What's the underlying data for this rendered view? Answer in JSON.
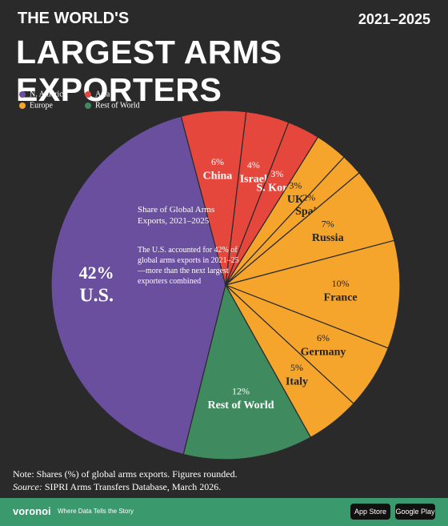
{
  "header": {
    "kicker": "THE WORLD'S",
    "years": "2021–2025",
    "title": "LARGEST ARMS EXPORTERS"
  },
  "chart_data": {
    "type": "pie",
    "series": [
      {
        "name": "N. America",
        "color": "#6a4f9f",
        "categories": [
          "U.S."
        ],
        "values": [
          42
        ],
        "value_labels": [
          "42%"
        ]
      },
      {
        "name": "Asia",
        "color": "#e5473d",
        "categories": [
          "China",
          "Israel",
          "S. Korea"
        ],
        "values": [
          6,
          4,
          3
        ],
        "value_labels": [
          "6%",
          "4%",
          "3%"
        ]
      },
      {
        "name": "Europe",
        "color": "#f5a52c",
        "categories": [
          "UK",
          "Spain",
          "Russia",
          "France",
          "Germany",
          "Italy"
        ],
        "values": [
          3,
          2,
          7,
          10,
          6,
          5
        ],
        "value_labels": [
          "3%",
          "2%",
          "7%",
          "10%",
          "6%",
          "5%"
        ]
      },
      {
        "name": "Rest of World",
        "color": "#3f8a5f",
        "categories": [
          "Rest of World"
        ],
        "values": [
          12
        ],
        "value_labels": [
          "12%"
        ]
      }
    ],
    "annotation_title": "Share of Global Arms Exports, 2021–2025",
    "annotation": "The U.S. accounted for 42% of global arms exports in 2021–25—more than the next largest exporters combined"
  },
  "footer": {
    "note": "Note: Shares (%) of global arms exports. Figures rounded.",
    "source_label": "Source:",
    "source": "SIPRI Arms Transfers Database, March 2026.",
    "brand": "voronoi",
    "tagline": "Where Data Tells the Story",
    "app_store": "App Store",
    "google_play": "Google Play"
  }
}
